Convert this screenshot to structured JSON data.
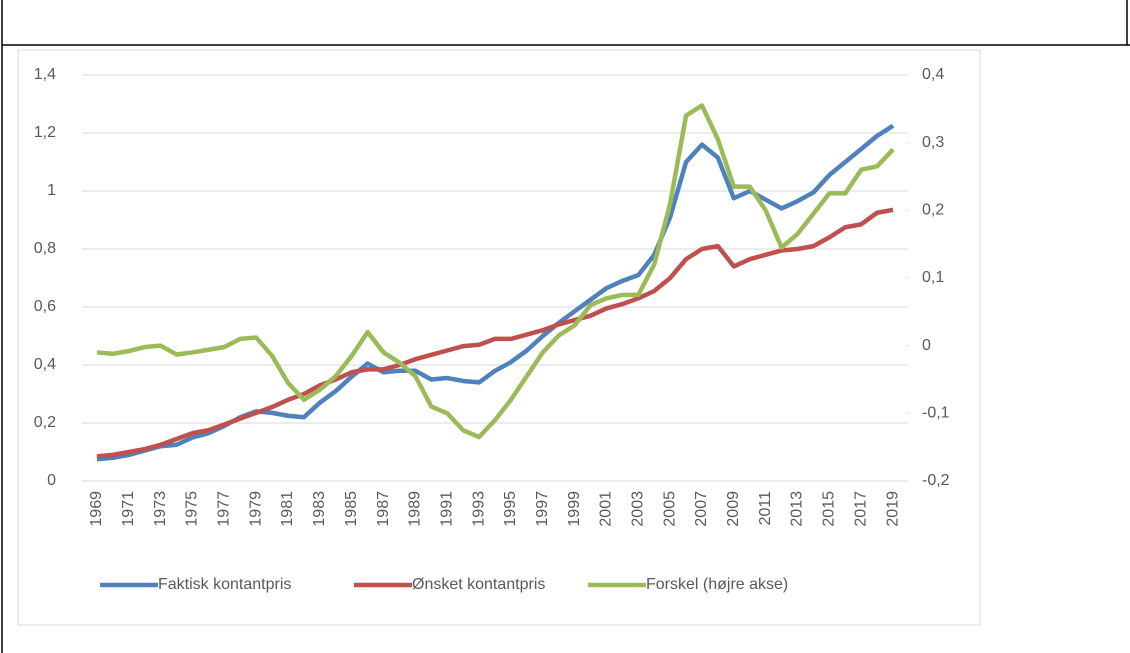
{
  "chart_data": {
    "type": "line",
    "x": [
      1969,
      1970,
      1971,
      1972,
      1973,
      1974,
      1975,
      1976,
      1977,
      1978,
      1979,
      1980,
      1981,
      1982,
      1983,
      1984,
      1985,
      1986,
      1987,
      1988,
      1989,
      1990,
      1991,
      1992,
      1993,
      1994,
      1995,
      1996,
      1997,
      1998,
      1999,
      2000,
      2001,
      2002,
      2003,
      2004,
      2005,
      2006,
      2007,
      2008,
      2009,
      2010,
      2011,
      2012,
      2013,
      2014,
      2015,
      2016,
      2017,
      2018,
      2019
    ],
    "xlim": [
      1968.5,
      2019.5
    ],
    "xticks": [
      1969,
      1971,
      1973,
      1975,
      1977,
      1979,
      1981,
      1983,
      1985,
      1987,
      1989,
      1991,
      1993,
      1995,
      1997,
      1999,
      2001,
      2003,
      2005,
      2007,
      2009,
      2011,
      2013,
      2015,
      2017,
      2019
    ],
    "ylim": [
      0,
      1.4
    ],
    "yticks": [
      0,
      {
        "value": 0.2,
        "label": "0,2"
      },
      {
        "value": 0.4,
        "label": "0,4"
      },
      {
        "value": 0.6,
        "label": "0,6"
      },
      {
        "value": 0.8,
        "label": "0,8"
      },
      1,
      {
        "value": 1.2,
        "label": "1,2"
      },
      {
        "value": 1.4,
        "label": "1,4"
      }
    ],
    "y2lim": [
      -0.2,
      0.4
    ],
    "y2ticks": [
      {
        "value": -0.2,
        "label": "-0,2"
      },
      {
        "value": -0.1,
        "label": "-0,1"
      },
      0,
      {
        "value": 0.1,
        "label": "0,1"
      },
      {
        "value": 0.2,
        "label": "0,2"
      },
      {
        "value": 0.3,
        "label": "0,3"
      },
      {
        "value": 0.4,
        "label": "0,4"
      }
    ],
    "grid": true,
    "legend": "bottom",
    "series": [
      {
        "name": "Faktisk kontantpris",
        "color": "#4f81bd",
        "values": [
          0.075,
          0.08,
          0.09,
          0.105,
          0.12,
          0.125,
          0.15,
          0.165,
          0.19,
          0.22,
          0.24,
          0.235,
          0.225,
          0.22,
          0.27,
          0.31,
          0.36,
          0.405,
          0.375,
          0.38,
          0.38,
          0.35,
          0.355,
          0.345,
          0.34,
          0.38,
          0.41,
          0.45,
          0.5,
          0.545,
          0.585,
          0.625,
          0.665,
          0.69,
          0.71,
          0.78,
          0.91,
          1.1,
          1.16,
          1.115,
          0.975,
          1.0,
          0.97,
          0.94,
          0.965,
          0.995,
          1.055,
          1.1,
          1.145,
          1.19,
          1.225
        ]
      },
      {
        "name": "Ønsket kontantpris",
        "color": "#c0504d",
        "values": [
          0.085,
          0.09,
          0.1,
          0.11,
          0.125,
          0.145,
          0.165,
          0.175,
          0.195,
          0.215,
          0.235,
          0.255,
          0.28,
          0.3,
          0.33,
          0.35,
          0.375,
          0.385,
          0.385,
          0.4,
          0.42,
          0.435,
          0.45,
          0.465,
          0.47,
          0.49,
          0.49,
          0.505,
          0.52,
          0.54,
          0.555,
          0.57,
          0.595,
          0.61,
          0.63,
          0.655,
          0.7,
          0.765,
          0.8,
          0.81,
          0.74,
          0.765,
          0.78,
          0.795,
          0.8,
          0.81,
          0.84,
          0.875,
          0.885,
          0.925,
          0.935
        ]
      },
      {
        "name": "Forskel (højre akse)",
        "color": "#9bbb59",
        "axis": "y2",
        "values": [
          -0.01,
          -0.012,
          -0.008,
          -0.002,
          0.0,
          -0.013,
          -0.01,
          -0.006,
          -0.002,
          0.01,
          0.012,
          -0.015,
          -0.055,
          -0.08,
          -0.065,
          -0.045,
          -0.015,
          0.02,
          -0.01,
          -0.025,
          -0.045,
          -0.09,
          -0.1,
          -0.125,
          -0.135,
          -0.11,
          -0.08,
          -0.045,
          -0.01,
          0.015,
          0.03,
          0.06,
          0.07,
          0.075,
          0.075,
          0.12,
          0.21,
          0.34,
          0.355,
          0.305,
          0.235,
          0.235,
          0.2,
          0.145,
          0.165,
          0.195,
          0.225,
          0.225,
          0.26,
          0.265,
          0.29
        ]
      }
    ]
  }
}
